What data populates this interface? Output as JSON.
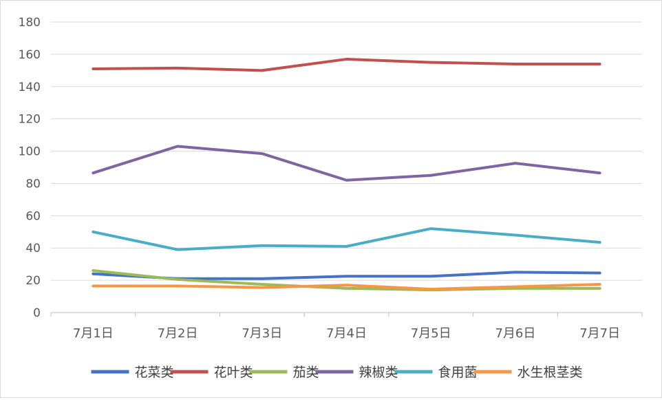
{
  "chart_data": {
    "type": "line",
    "categories": [
      "7月1日",
      "7月2日",
      "7月3日",
      "7月4日",
      "7月5日",
      "7月6日",
      "7月7日"
    ],
    "ylim": [
      0,
      180
    ],
    "yticks": [
      0,
      20,
      40,
      60,
      80,
      100,
      120,
      140,
      160,
      180
    ],
    "grid": true,
    "legend_position": "bottom",
    "series": [
      {
        "name": "花菜类",
        "color": "#4472C4",
        "values": [
          24,
          21,
          21,
          22.5,
          22.5,
          25,
          24.5
        ]
      },
      {
        "name": "花叶类",
        "color": "#C0504D",
        "values": [
          151,
          151.5,
          150,
          157,
          155,
          154,
          154
        ]
      },
      {
        "name": "茄类",
        "color": "#9BBB59",
        "values": [
          26,
          20.5,
          17.5,
          15,
          14,
          15,
          15
        ]
      },
      {
        "name": "辣椒类",
        "color": "#8064A2",
        "values": [
          86.5,
          103,
          98.5,
          82,
          85,
          92.5,
          86.5
        ]
      },
      {
        "name": "食用菌",
        "color": "#4BACC6",
        "values": [
          50,
          39,
          41.5,
          41,
          52,
          48,
          43.5
        ]
      },
      {
        "name": "水生根茎类",
        "color": "#F79646",
        "values": [
          16.5,
          16.5,
          15.5,
          17,
          14.5,
          16,
          17.5
        ]
      }
    ]
  }
}
